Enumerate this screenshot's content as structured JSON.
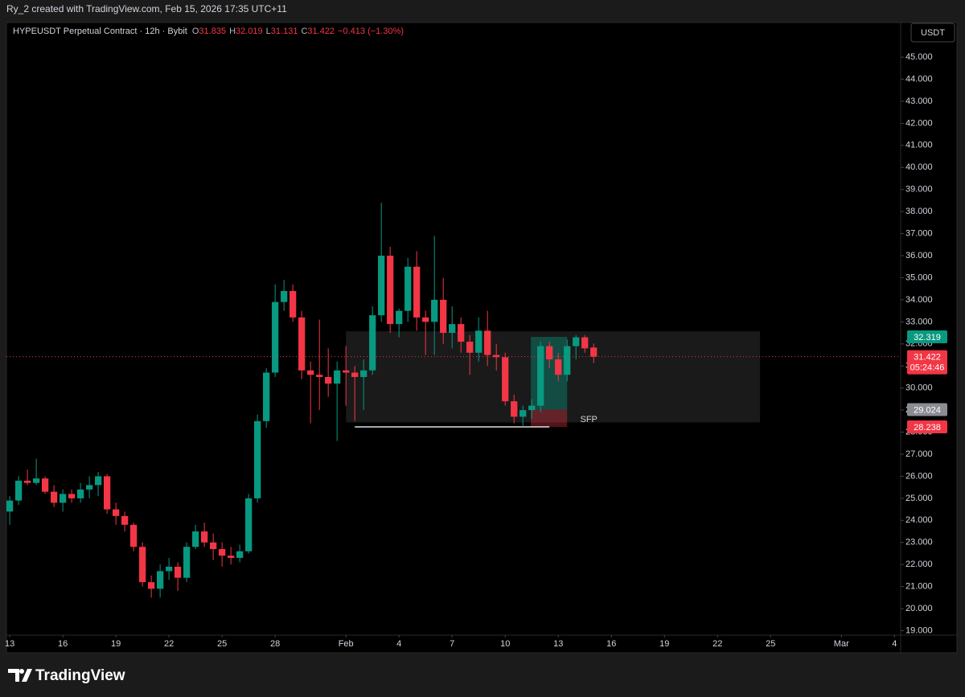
{
  "header": {
    "credit": "Ry_2 created with TradingView.com, Feb 15, 2026 17:35 UTC+11",
    "logo": "TradingView"
  },
  "chart_data": {
    "type": "candlestick",
    "title": "HYPEUSDT Perpetual Contract · 12h · Bybit",
    "ohlc_letters": [
      "O",
      "H",
      "L",
      "C"
    ],
    "change": "−0.413 (−1.30%)",
    "currency": "USDT",
    "countdown": "05:24:46",
    "up_color": "#089981",
    "down_color": "#f23645",
    "open": [
      24.4,
      24.9,
      25.8,
      25.7,
      25.9,
      25.3,
      24.8,
      25.2,
      25.0,
      25.4,
      25.6,
      26.0,
      24.5,
      24.2,
      23.8,
      22.8,
      21.2,
      20.9,
      21.7,
      21.9,
      21.4,
      22.8,
      23.5,
      23.0,
      22.7,
      22.4,
      22.3,
      22.6,
      25.0,
      28.5,
      30.7,
      33.9,
      34.4,
      33.2,
      30.8,
      30.6,
      30.5,
      30.2,
      30.8,
      30.7,
      30.5,
      30.8,
      33.3,
      36.0,
      32.9,
      33.5,
      35.5,
      33.2,
      33.0,
      34.0,
      32.5,
      32.9,
      32.1,
      31.6,
      32.6,
      31.5,
      31.4,
      29.4,
      28.7,
      29.0,
      29.2,
      31.9,
      31.3,
      30.6,
      31.9,
      32.3,
      31.835
    ],
    "high": [
      25.1,
      26.0,
      26.3,
      26.8,
      26.0,
      25.6,
      25.4,
      25.4,
      25.7,
      26.0,
      26.2,
      26.1,
      24.8,
      24.4,
      23.9,
      23.0,
      21.5,
      22.0,
      22.3,
      22.1,
      23.0,
      23.8,
      23.9,
      23.4,
      23.0,
      22.8,
      22.9,
      25.2,
      28.8,
      30.9,
      34.7,
      34.9,
      34.7,
      33.5,
      31.2,
      33.1,
      31.8,
      31.2,
      31.9,
      31.0,
      31.3,
      33.7,
      38.4,
      36.4,
      33.6,
      35.9,
      36.2,
      33.5,
      36.9,
      35.0,
      33.7,
      33.2,
      32.4,
      33.2,
      33.5,
      32.0,
      31.6,
      29.7,
      29.2,
      29.5,
      32.1,
      32.1,
      31.6,
      32.2,
      32.4,
      32.4,
      32.019
    ],
    "low": [
      23.8,
      24.7,
      25.6,
      25.6,
      25.2,
      24.6,
      24.4,
      24.8,
      24.8,
      25.0,
      25.1,
      24.3,
      23.8,
      23.5,
      22.6,
      21.0,
      20.5,
      20.5,
      21.3,
      20.8,
      21.2,
      22.7,
      22.8,
      22.2,
      21.9,
      22.0,
      22.1,
      22.5,
      24.8,
      28.2,
      30.5,
      33.5,
      33.0,
      30.4,
      28.4,
      29.0,
      29.6,
      27.6,
      29.2,
      28.5,
      29.0,
      30.6,
      33.0,
      32.5,
      32.3,
      33.0,
      32.6,
      31.5,
      31.5,
      32.0,
      31.8,
      31.6,
      30.6,
      31.2,
      31.0,
      30.8,
      29.2,
      28.4,
      28.238,
      28.6,
      28.9,
      30.9,
      30.3,
      30.3,
      31.3,
      31.6,
      31.131
    ],
    "close": [
      24.9,
      25.8,
      25.7,
      25.9,
      25.3,
      24.8,
      25.2,
      25.0,
      25.4,
      25.6,
      26.0,
      24.5,
      24.2,
      23.8,
      22.8,
      21.2,
      20.9,
      21.7,
      21.9,
      21.4,
      22.8,
      23.5,
      23.0,
      22.7,
      22.4,
      22.3,
      22.6,
      25.0,
      28.5,
      30.7,
      33.9,
      34.4,
      33.2,
      30.8,
      30.6,
      30.5,
      30.2,
      30.8,
      30.7,
      30.5,
      30.8,
      33.3,
      36.0,
      32.9,
      33.5,
      35.5,
      33.2,
      33.0,
      34.0,
      32.5,
      32.9,
      32.1,
      31.6,
      32.6,
      31.5,
      31.4,
      29.4,
      28.7,
      29.0,
      29.2,
      31.9,
      31.3,
      30.6,
      31.9,
      32.3,
      31.8,
      31.422
    ],
    "xlim": [
      -1.1,
      100.7
    ],
    "xticks": [
      {
        "value": 0,
        "label": "13"
      },
      {
        "value": 6,
        "label": "16"
      },
      {
        "value": 12,
        "label": "19"
      },
      {
        "value": 18,
        "label": "22"
      },
      {
        "value": 24,
        "label": "25"
      },
      {
        "value": 30,
        "label": "28"
      },
      {
        "value": 38,
        "label": "Feb"
      },
      {
        "value": 44,
        "label": "4"
      },
      {
        "value": 50,
        "label": "7"
      },
      {
        "value": 56,
        "label": "10"
      },
      {
        "value": 62,
        "label": "13"
      },
      {
        "value": 68,
        "label": "16"
      },
      {
        "value": 74,
        "label": "19"
      },
      {
        "value": 80,
        "label": "22"
      },
      {
        "value": 86,
        "label": "25"
      },
      {
        "value": 94,
        "label": "Mar"
      },
      {
        "value": 100,
        "label": "4"
      }
    ],
    "ylim": [
      18.8,
      46.57
    ],
    "yticks": [
      {
        "value": 19,
        "label": "19.000"
      },
      {
        "value": 20,
        "label": "20.000"
      },
      {
        "value": 21,
        "label": "21.000"
      },
      {
        "value": 22,
        "label": "22.000"
      },
      {
        "value": 23,
        "label": "23.000"
      },
      {
        "value": 24,
        "label": "24.000"
      },
      {
        "value": 25,
        "label": "25.000"
      },
      {
        "value": 26,
        "label": "26.000"
      },
      {
        "value": 27,
        "label": "27.000"
      },
      {
        "value": 28,
        "label": "28.000"
      },
      {
        "value": 29,
        "label": "29.000"
      },
      {
        "value": 30,
        "label": "30.000"
      },
      {
        "value": 31,
        "label": "31.000"
      },
      {
        "value": 32,
        "label": "32.000"
      },
      {
        "value": 33,
        "label": "33.000"
      },
      {
        "value": 34,
        "label": "34.000"
      },
      {
        "value": 35,
        "label": "35.000"
      },
      {
        "value": 36,
        "label": "36.000"
      },
      {
        "value": 37,
        "label": "37.000"
      },
      {
        "value": 38,
        "label": "38.000"
      },
      {
        "value": 39,
        "label": "39.000"
      },
      {
        "value": 40,
        "label": "40.000"
      },
      {
        "value": 41,
        "label": "41.000"
      },
      {
        "value": 42,
        "label": "42.000"
      },
      {
        "value": 43,
        "label": "43.000"
      },
      {
        "value": 44,
        "label": "44.000"
      },
      {
        "value": 45,
        "label": "45.000"
      }
    ],
    "zones": [
      {
        "x": [
          38,
          84.8
        ],
        "y": [
          28.44,
          32.57
        ],
        "color": "#ffffff",
        "opacity": 0.1
      },
      {
        "x": [
          58.9,
          63
        ],
        "y": [
          29.024,
          32.319
        ],
        "color": "#089981",
        "opacity": 0.4
      },
      {
        "x": [
          58.9,
          63
        ],
        "y": [
          28.238,
          29.024
        ],
        "color": "#f23645",
        "opacity": 0.35
      }
    ],
    "level": {
      "x": [
        39,
        61
      ],
      "y": 28.238,
      "label": "SFP"
    }
  }
}
